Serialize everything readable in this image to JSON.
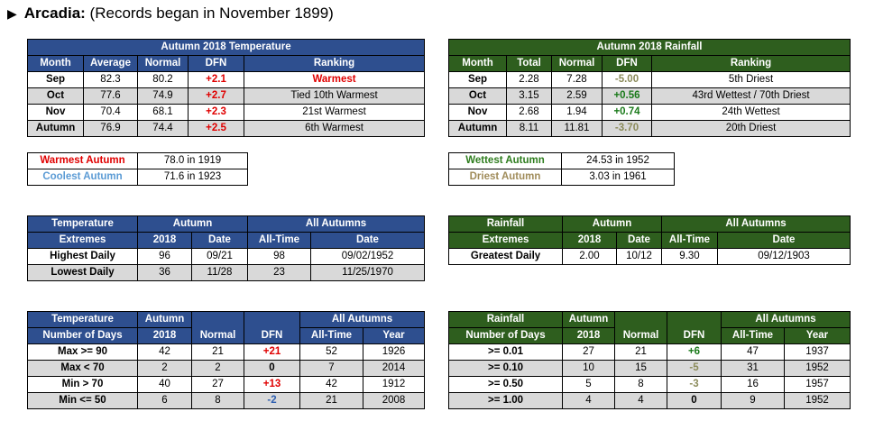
{
  "title": {
    "station": "Arcadia:",
    "note": "(Records began in November 1899)"
  },
  "temp": {
    "title": "Autumn 2018 Temperature",
    "headers": [
      "Month",
      "Average",
      "Normal",
      "DFN",
      "Ranking"
    ],
    "rows": [
      {
        "month": "Sep",
        "average": "82.3",
        "normal": "80.2",
        "dfn": "+2.1",
        "ranking": "Warmest"
      },
      {
        "month": "Oct",
        "average": "77.6",
        "normal": "74.9",
        "dfn": "+2.7",
        "ranking": "Tied 10th Warmest"
      },
      {
        "month": "Nov",
        "average": "70.4",
        "normal": "68.1",
        "dfn": "+2.3",
        "ranking": "21st Warmest"
      },
      {
        "month": "Autumn",
        "average": "76.9",
        "normal": "74.4",
        "dfn": "+2.5",
        "ranking": "6th Warmest"
      }
    ]
  },
  "rain": {
    "title": "Autumn 2018 Rainfall",
    "headers": [
      "Month",
      "Total",
      "Normal",
      "DFN",
      "Ranking"
    ],
    "rows": [
      {
        "month": "Sep",
        "total": "2.28",
        "normal": "7.28",
        "dfn": "-5.00",
        "ranking": "5th Driest"
      },
      {
        "month": "Oct",
        "total": "3.15",
        "normal": "2.59",
        "dfn": "+0.56",
        "ranking": "43rd Wettest / 70th Driest"
      },
      {
        "month": "Nov",
        "total": "2.68",
        "normal": "1.94",
        "dfn": "+0.74",
        "ranking": "24th Wettest"
      },
      {
        "month": "Autumn",
        "total": "8.11",
        "normal": "11.81",
        "dfn": "-3.70",
        "ranking": "20th Driest"
      }
    ]
  },
  "temp_records": {
    "warmest_label": "Warmest Autumn",
    "warmest_value": "78.0 in 1919",
    "coolest_label": "Coolest Autumn",
    "coolest_value": "71.6 in 1923"
  },
  "rain_records": {
    "wettest_label": "Wettest Autumn",
    "wettest_value": "24.53 in 1952",
    "driest_label": "Driest Autumn",
    "driest_value": "3.03 in 1961"
  },
  "temp_extremes": {
    "label1": "Temperature",
    "label2": "Extremes",
    "autumn": "Autumn",
    "all_autumns": "All Autumns",
    "col_2018": "2018",
    "col_date": "Date",
    "col_alltime": "All-Time",
    "col_date2": "Date",
    "rows": [
      {
        "name": "Highest Daily",
        "v2018": "96",
        "date": "09/21",
        "alltime": "98",
        "date2": "09/02/1952"
      },
      {
        "name": "Lowest Daily",
        "v2018": "36",
        "date": "11/28",
        "alltime": "23",
        "date2": "11/25/1970"
      }
    ]
  },
  "rain_extremes": {
    "label1": "Rainfall",
    "label2": "Extremes",
    "autumn": "Autumn",
    "all_autumns": "All Autumns",
    "col_2018": "2018",
    "col_date": "Date",
    "col_alltime": "All-Time",
    "col_date2": "Date",
    "rows": [
      {
        "name": "Greatest Daily",
        "v2018": "2.00",
        "date": "10/12",
        "alltime": "9.30",
        "date2": "09/12/1903"
      }
    ]
  },
  "temp_days": {
    "label1": "Temperature",
    "label2": "Number of Days",
    "autumn": "Autumn",
    "col_2018": "2018",
    "col_normal": "Normal",
    "col_dfn": "DFN",
    "all_autumns": "All Autumns",
    "col_alltime": "All-Time",
    "col_year": "Year",
    "rows": [
      {
        "name": "Max >= 90",
        "v2018": "42",
        "normal": "21",
        "dfn": "+21",
        "alltime": "52",
        "year": "1926"
      },
      {
        "name": "Max < 70",
        "v2018": "2",
        "normal": "2",
        "dfn": "0",
        "alltime": "7",
        "year": "2014"
      },
      {
        "name": "Min > 70",
        "v2018": "40",
        "normal": "27",
        "dfn": "+13",
        "alltime": "42",
        "year": "1912"
      },
      {
        "name": "Min <= 50",
        "v2018": "6",
        "normal": "8",
        "dfn": "-2",
        "alltime": "21",
        "year": "2008"
      }
    ]
  },
  "rain_days": {
    "label1": "Rainfall",
    "label2": "Number of Days",
    "autumn": "Autumn",
    "col_2018": "2018",
    "col_normal": "Normal",
    "col_dfn": "DFN",
    "all_autumns": "All Autumns",
    "col_alltime": "All-Time",
    "col_year": "Year",
    "rows": [
      {
        "name": ">= 0.01",
        "v2018": "27",
        "normal": "21",
        "dfn": "+6",
        "alltime": "47",
        "year": "1937"
      },
      {
        "name": ">= 0.10",
        "v2018": "10",
        "normal": "15",
        "dfn": "-5",
        "alltime": "31",
        "year": "1952"
      },
      {
        "name": ">= 0.50",
        "v2018": "5",
        "normal": "8",
        "dfn": "-3",
        "alltime": "16",
        "year": "1957"
      },
      {
        "name": ">= 1.00",
        "v2018": "4",
        "normal": "4",
        "dfn": "0",
        "alltime": "9",
        "year": "1952"
      }
    ]
  },
  "colors": {
    "temp_header": "#2e4f8f",
    "rain_header": "#2e5e1e",
    "alt_row": "#d9d9d9",
    "warm": "#e00000",
    "wet": "#1a7a1a",
    "dry": "#8b8b5a"
  }
}
